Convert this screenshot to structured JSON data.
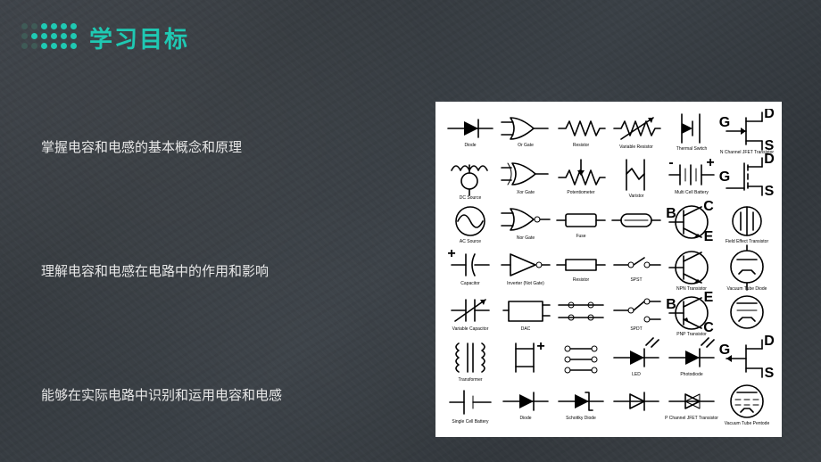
{
  "title": {
    "text": "学习目标",
    "color": "#1fc9b3",
    "fontsize": 26
  },
  "dots": {
    "rows": 3,
    "cols": 6,
    "color_main": "#1fc9b3",
    "color_muted": "#3f5a56",
    "pattern": [
      [
        0,
        0,
        1,
        1,
        1,
        1
      ],
      [
        0,
        1,
        1,
        1,
        1,
        1
      ],
      [
        0,
        0,
        1,
        1,
        1,
        1
      ]
    ]
  },
  "objectives": {
    "color": "#e8e8e8",
    "fontsize": 15,
    "items": [
      "掌握电容和电感的基本概念和原理",
      "理解电容和电感在电路中的作用和影响",
      "能够在实际电路中识别和运用电容和电感"
    ]
  },
  "background": {
    "base": "#3a3f44"
  },
  "panel": {
    "bg": "#ffffff",
    "cols": 6,
    "rows": 7,
    "labels": {
      "G": "G",
      "D": "D",
      "S": "S",
      "B": "B",
      "C": "C",
      "E": "E",
      "plus": "+",
      "minus": "-"
    },
    "captions": {
      "diode": "Diode",
      "or": "Or Gate",
      "resistor": "Resistor",
      "varres": "Variable Resistor",
      "thermal": "Thermal Switch",
      "jfet": "N Channel JFET Transistor",
      "dcsrc": "DC Source",
      "xor": "Xor Gate",
      "pot": "Potentiometer",
      "varistor": "Varistor",
      "cell": "Multi Cell Battery",
      "acsrc": "AC Source",
      "nor": "Nor Gate",
      "fuse": "Fuse",
      "fet": "Field Effect Transistor",
      "cap": "Capacitor",
      "inv": "Inverter (Not Gate)",
      "res2": "Resistor",
      "npn": "NPN Transistor",
      "varcap": "Variable Capacitor",
      "dac": "DAC",
      "spst": "SPST",
      "pnp": "PNP Transistor",
      "tube1": "Vacuum Tube Diode",
      "xfmr": "Transformer",
      "spdt": "SPDT",
      "led": "LED",
      "batt": "Single Cell Battery",
      "diode2": "Diode",
      "schottky": "Schottky Diode",
      "photod": "Photodiode",
      "jfet2": "P Channel JFET Transistor",
      "pentode": "Vacuum Tube Pentode"
    }
  }
}
